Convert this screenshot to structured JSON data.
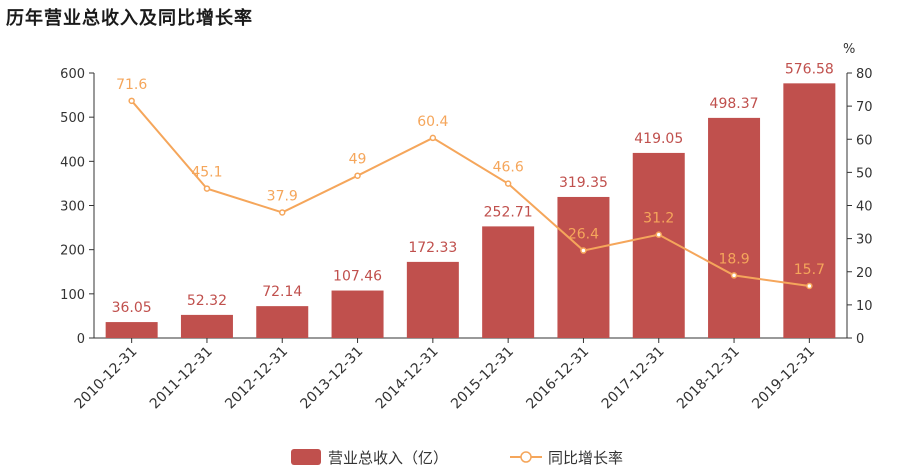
{
  "chart_data": {
    "type": "bar",
    "title": "历年营业总收入及同比增长率",
    "categories": [
      "2010-12-31",
      "2011-12-31",
      "2012-12-31",
      "2013-12-31",
      "2014-12-31",
      "2015-12-31",
      "2016-12-31",
      "2017-12-31",
      "2018-12-31",
      "2019-12-31"
    ],
    "series": [
      {
        "name": "营业总收入（亿）",
        "type": "bar",
        "axis": "left",
        "color": "#c0504d",
        "values": [
          36.05,
          52.32,
          72.14,
          107.46,
          172.33,
          252.71,
          319.35,
          419.05,
          498.37,
          576.58
        ]
      },
      {
        "name": "同比增长率",
        "type": "line",
        "axis": "right",
        "color": "#f5a65b",
        "values": [
          71.6,
          45.1,
          37.9,
          49,
          60.4,
          46.6,
          26.4,
          31.2,
          18.9,
          15.7
        ]
      }
    ],
    "y_left": {
      "ylim": [
        0,
        600
      ],
      "ticks": [
        "0",
        "100",
        "200",
        "300",
        "400",
        "500",
        "600"
      ]
    },
    "y_right": {
      "ylim": [
        0,
        80
      ],
      "ticks": [
        "0",
        "10",
        "20",
        "30",
        "40",
        "50",
        "60",
        "70",
        "80"
      ],
      "unit": "%"
    },
    "grid": false,
    "legend": "bottom-center"
  }
}
